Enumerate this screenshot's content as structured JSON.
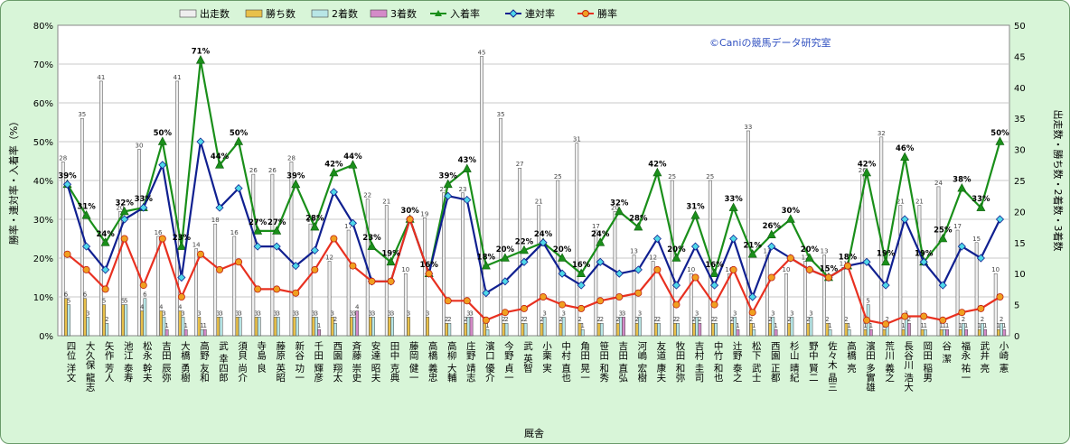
{
  "watermark": "©Caniの競馬データ研究室",
  "chart_data": {
    "type": "bar",
    "ylabel_left": "勝率・連対率・入着率（%）",
    "ylabel_right": "出走数・勝ち数・2着数・3着数",
    "xlabel": "厩舎",
    "ylim_left": [
      0,
      80
    ],
    "ylim_right": [
      0,
      50
    ],
    "left_ticks": [
      "0%",
      "10%",
      "20%",
      "30%",
      "40%",
      "50%",
      "60%",
      "70%",
      "80%"
    ],
    "right_ticks": [
      "0",
      "5",
      "10",
      "15",
      "20",
      "25",
      "30",
      "35",
      "40",
      "45",
      "50"
    ],
    "grid": true,
    "legend_position": "top",
    "categories": [
      "四位 洋文",
      "大久保 龍志",
      "矢作 芳人",
      "池江 泰寿",
      "松永 幹夫",
      "吉田 辰弥",
      "大橋 勇樹",
      "高野 友和",
      "武 幸四郎",
      "須貝 尚介",
      "寺島 良",
      "藤原 英昭",
      "新谷 功一",
      "千田 輝彦",
      "西園 翔太",
      "斉藤 崇史",
      "安達 昭夫",
      "田中 克典",
      "藤岡 健一",
      "高橋 義忠",
      "高柳 大輔",
      "庄野 靖志",
      "濱口 優介",
      "今野 貞一",
      "武 英智",
      "小栗 実",
      "中村 直也",
      "角田 晃一",
      "笹田 和秀",
      "吉田 直弘",
      "河嶋 宏樹",
      "友道 康夫",
      "牧田 和弥",
      "吉村 圭司",
      "中竹 和也",
      "辻野 泰之",
      "松下 武士",
      "西園 正都",
      "杉山 晴紀",
      "野中 賢二",
      "佐々木 晶三",
      "高橋 亮",
      "濱田 多實雄",
      "荒川 義之",
      "長谷川 浩大",
      "岡田 稲男",
      "谷 潔",
      "福永 祐一",
      "武井 亮",
      "小崎 憲"
    ],
    "series": [
      {
        "name": "出走数",
        "axis": "right",
        "values": [
          28,
          35,
          41,
          20,
          30,
          16,
          41,
          14,
          18,
          16,
          26,
          26,
          28,
          18,
          12,
          17,
          22,
          21,
          10,
          19,
          23,
          23,
          45,
          35,
          27,
          21,
          25,
          31,
          17,
          20,
          13,
          12,
          25,
          10,
          25,
          10,
          33,
          13,
          10,
          12,
          13,
          11,
          26,
          32,
          21,
          21,
          24,
          17,
          15,
          10
        ]
      },
      {
        "name": "勝ち数",
        "axis": "right",
        "values": [
          6,
          6,
          5,
          5,
          4,
          4,
          4,
          3,
          3,
          3,
          3,
          3,
          3,
          3,
          3,
          3,
          3,
          3,
          3,
          3,
          2,
          2,
          2,
          2,
          2,
          2,
          2,
          2,
          2,
          2,
          2,
          2,
          2,
          2,
          2,
          2,
          2,
          2,
          2,
          2,
          2,
          2,
          1,
          1,
          1,
          1,
          1,
          1,
          1,
          1
        ]
      },
      {
        "name": "2着数",
        "axis": "right",
        "values": [
          5,
          3,
          2,
          5,
          6,
          3,
          3,
          1,
          3,
          3,
          3,
          3,
          3,
          3,
          2,
          3,
          3,
          3,
          0,
          0,
          2,
          3,
          1,
          2,
          2,
          3,
          3,
          1,
          2,
          3,
          3,
          2,
          2,
          3,
          2,
          3,
          1,
          3,
          3,
          3,
          1,
          1,
          5,
          2,
          3,
          1,
          1,
          2,
          2,
          2
        ]
      },
      {
        "name": "3着数",
        "axis": "right",
        "values": [
          0,
          0,
          0,
          0,
          0,
          1,
          1,
          1,
          0,
          0,
          0,
          0,
          0,
          1,
          0,
          4,
          0,
          0,
          0,
          0,
          0,
          3,
          0,
          0,
          0,
          0,
          0,
          0,
          0,
          3,
          0,
          0,
          0,
          2,
          0,
          1,
          0,
          1,
          0,
          0,
          0,
          0,
          1,
          0,
          2,
          0,
          1,
          1,
          1,
          1
        ]
      },
      {
        "name": "入着率",
        "axis": "left",
        "values": [
          39,
          31,
          24,
          32,
          33,
          50,
          23,
          71,
          44,
          50,
          27,
          27,
          39,
          28,
          42,
          44,
          23,
          19,
          30,
          16,
          39,
          43,
          18,
          20,
          22,
          24,
          20,
          16,
          24,
          32,
          28,
          42,
          20,
          31,
          16,
          33,
          21,
          26,
          30,
          20,
          15,
          18,
          42,
          19,
          46,
          19,
          25,
          38,
          33,
          50
        ]
      },
      {
        "name": "連対率",
        "axis": "left",
        "values": [
          39,
          23,
          17,
          30,
          33,
          44,
          15,
          50,
          33,
          38,
          23,
          23,
          18,
          22,
          37,
          29,
          14,
          14,
          30,
          16,
          36,
          35,
          11,
          14,
          19,
          24,
          16,
          13,
          19,
          16,
          17,
          25,
          13,
          23,
          13,
          25,
          10,
          23,
          20,
          17,
          15,
          18,
          19,
          13,
          30,
          19,
          13,
          23,
          20,
          30
        ]
      },
      {
        "name": "勝率",
        "axis": "left",
        "values": [
          21,
          17,
          12,
          25,
          13,
          25,
          10,
          21,
          17,
          19,
          12,
          12,
          11,
          17,
          25,
          18,
          14,
          14,
          30,
          16,
          9,
          9,
          4,
          6,
          7,
          10,
          8,
          7,
          9,
          10,
          11,
          17,
          8,
          15,
          8,
          17,
          6,
          15,
          20,
          17,
          15,
          18,
          4,
          3,
          5,
          5,
          4,
          6,
          7,
          10
        ]
      }
    ],
    "annotations": [
      {
        "index": 0,
        "series": "入着率",
        "label": "39%"
      },
      {
        "index": 1,
        "series": "入着率",
        "label": "31%"
      },
      {
        "index": 2,
        "series": "入着率",
        "label": "24%"
      },
      {
        "index": 3,
        "series": "入着率",
        "label": "32%"
      },
      {
        "index": 4,
        "series": "入着率",
        "label": "33%"
      },
      {
        "index": 5,
        "series": "入着率",
        "label": "50%"
      },
      {
        "index": 6,
        "series": "入着率",
        "label": "23%"
      },
      {
        "index": 7,
        "series": "入着率",
        "label": "71%"
      },
      {
        "index": 8,
        "series": "入着率",
        "label": "44%"
      },
      {
        "index": 9,
        "series": "入着率",
        "label": "50%"
      },
      {
        "index": 10,
        "series": "入着率",
        "label": "27%"
      },
      {
        "index": 11,
        "series": "入着率",
        "label": "27%"
      },
      {
        "index": 12,
        "series": "入着率",
        "label": "39%"
      },
      {
        "index": 13,
        "series": "入着率",
        "label": "28%"
      },
      {
        "index": 14,
        "series": "入着率",
        "label": "42%"
      },
      {
        "index": 15,
        "series": "入着率",
        "label": "44%"
      },
      {
        "index": 16,
        "series": "入着率",
        "label": "23%"
      },
      {
        "index": 17,
        "series": "入着率",
        "label": "19%"
      },
      {
        "index": 18,
        "series": "入着率",
        "label": "30%"
      },
      {
        "index": 19,
        "series": "入着率",
        "label": "16%"
      },
      {
        "index": 20,
        "series": "入着率",
        "label": "39%"
      },
      {
        "index": 21,
        "series": "入着率",
        "label": "43%"
      },
      {
        "index": 22,
        "series": "入着率",
        "label": "18%"
      },
      {
        "index": 23,
        "series": "入着率",
        "label": "20%"
      },
      {
        "index": 24,
        "series": "入着率",
        "label": "22%"
      },
      {
        "index": 25,
        "series": "入着率",
        "label": "24%"
      },
      {
        "index": 26,
        "series": "入着率",
        "label": "20%"
      },
      {
        "index": 27,
        "series": "入着率",
        "label": "16%"
      },
      {
        "index": 28,
        "series": "入着率",
        "label": "24%"
      },
      {
        "index": 29,
        "series": "入着率",
        "label": "32%"
      },
      {
        "index": 30,
        "series": "入着率",
        "label": "28%"
      },
      {
        "index": 31,
        "series": "入着率",
        "label": "42%"
      },
      {
        "index": 32,
        "series": "入着率",
        "label": "20%"
      },
      {
        "index": 33,
        "series": "入着率",
        "label": "31%"
      },
      {
        "index": 34,
        "series": "入着率",
        "label": "16%"
      },
      {
        "index": 35,
        "series": "入着率",
        "label": "33%"
      },
      {
        "index": 36,
        "series": "入着率",
        "label": "21%"
      },
      {
        "index": 37,
        "series": "入着率",
        "label": "26%"
      },
      {
        "index": 38,
        "series": "入着率",
        "label": "30%"
      },
      {
        "index": 39,
        "series": "入着率",
        "label": "20%"
      },
      {
        "index": 40,
        "series": "入着率",
        "label": "15%"
      },
      {
        "index": 41,
        "series": "入着率",
        "label": "18%"
      },
      {
        "index": 42,
        "series": "入着率",
        "label": "42%"
      },
      {
        "index": 43,
        "series": "入着率",
        "label": "19%"
      },
      {
        "index": 44,
        "series": "入着率",
        "label": "46%"
      },
      {
        "index": 45,
        "series": "入着率",
        "label": "19%"
      },
      {
        "index": 46,
        "series": "入着率",
        "label": "25%"
      },
      {
        "index": 47,
        "series": "入着率",
        "label": "38%"
      },
      {
        "index": 48,
        "series": "入着率",
        "label": "33%"
      },
      {
        "index": 49,
        "series": "入着率",
        "label": "50%"
      }
    ]
  },
  "colors": {
    "background": "#d8f5d8",
    "plot_background": "#ffffff",
    "starts_bar": "#eeeeee",
    "wins_bar": "#e8c04a",
    "second_bar": "#b8e6e6",
    "third_bar": "#d48ac8",
    "place_rate_line": "#1a8f1a",
    "top2_rate_line": "#102090",
    "win_rate_line": "#e83020",
    "win_rate_marker": "#f0a020",
    "watermark": "#3050c0"
  },
  "icons": {
    "place_rate_marker": "triangle",
    "top2_rate_marker": "diamond",
    "win_rate_marker": "circle"
  }
}
